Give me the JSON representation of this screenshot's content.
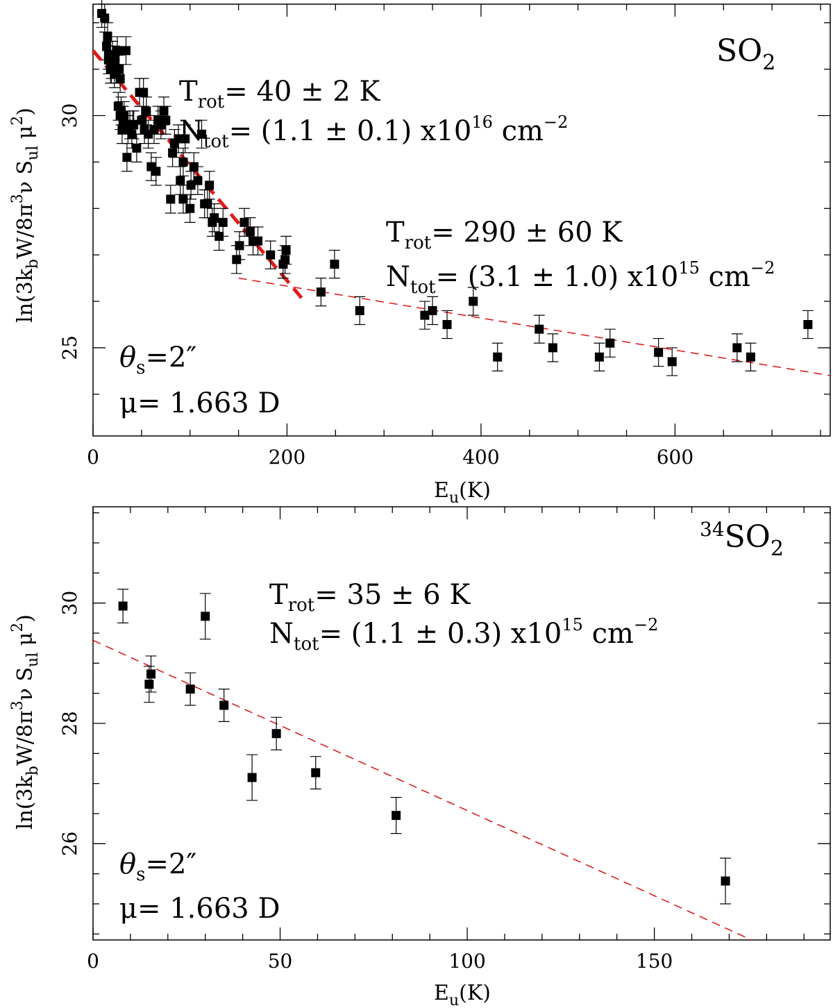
{
  "chart_data": [
    {
      "type": "scatter",
      "panel": "top",
      "species_label": "SO",
      "species_label_subscript": "2",
      "species_label_superscript": "",
      "xlabel": "E",
      "xlabel_sub": "u",
      "xlabel_unit": "(K)",
      "ylabel_prefix": "ln(3k",
      "ylabel_b": "b",
      "ylabel_mid": "W/8π",
      "ylabel_pow": "3",
      "ylabel_nu": "ν  S",
      "ylabel_ul": "ul",
      "ylabel_mu": " μ",
      "ylabel_pow2": "2",
      "ylabel_close": ")",
      "xlim": [
        0,
        760
      ],
      "ylim": [
        23.1,
        32.4
      ],
      "xticks": [
        0,
        200,
        400,
        600
      ],
      "xminor_step": 50,
      "yticks": [
        25,
        30
      ],
      "yminor_step": 1,
      "x": [
        9,
        12,
        14,
        15,
        16,
        16,
        18,
        18,
        19,
        19,
        20,
        22,
        22,
        24,
        25,
        26,
        27,
        28,
        28,
        29,
        30,
        31,
        32,
        34,
        35,
        36,
        38,
        40,
        41,
        42,
        45,
        48,
        50,
        52,
        53,
        55,
        57,
        60,
        63,
        65,
        67,
        70,
        72,
        73,
        75,
        80,
        82,
        84,
        88,
        90,
        93,
        93,
        95,
        100,
        101,
        104,
        108,
        112,
        115,
        118,
        120,
        123,
        125,
        130,
        134,
        148,
        151,
        156,
        162,
        165,
        170,
        183,
        196,
        198,
        199,
        235,
        249,
        275,
        342,
        350,
        365,
        392,
        417,
        460,
        474,
        522,
        533,
        583,
        597,
        664,
        678,
        737
      ],
      "y": [
        32.2,
        32.1,
        31.5,
        31.7,
        31.3,
        31.2,
        31.3,
        31.0,
        31.1,
        31.0,
        31.3,
        30.9,
        31.2,
        31.0,
        31.4,
        30.2,
        31.0,
        30.8,
        30.0,
        30.1,
        29.7,
        29.9,
        30.0,
        31.4,
        29.1,
        29.7,
        29.8,
        29.6,
        29.8,
        29.8,
        29.3,
        30.5,
        29.9,
        30.5,
        29.7,
        30.1,
        29.6,
        28.9,
        29.7,
        28.8,
        29.9,
        29.8,
        29.9,
        30.1,
        29.9,
        28.2,
        29.2,
        29.4,
        29.5,
        28.6,
        29.0,
        28.2,
        29.5,
        28.0,
        28.5,
        28.9,
        28.6,
        29.6,
        28.1,
        28.1,
        28.5,
        27.7,
        27.8,
        27.4,
        27.7,
        26.9,
        27.2,
        27.7,
        27.5,
        27.3,
        27.3,
        27.0,
        26.8,
        26.9,
        27.1,
        26.2,
        26.8,
        25.8,
        25.7,
        25.8,
        25.5,
        26.0,
        24.8,
        25.4,
        25.0,
        24.8,
        25.1,
        24.9,
        24.7,
        25.0,
        24.8,
        25.5
      ],
      "yerr": 0.3,
      "fits": [
        {
          "x": [
            0,
            218
          ],
          "y": [
            31.4,
            26.0
          ],
          "style": "thick"
        },
        {
          "x": [
            150,
            760
          ],
          "y": [
            26.5,
            24.4
          ],
          "style": "thin"
        }
      ],
      "annotations": {
        "fit1_trot_sym": "T",
        "fit1_trot_sub": "rot",
        "fit1_trot_val": "= 40 ± 2 K",
        "fit1_ntot_sym": "N",
        "fit1_ntot_sub": "tot",
        "fit1_ntot_val": "= (1.1 ± 0.1) x10",
        "fit1_ntot_exp": "16",
        "fit1_ntot_unit": " cm",
        "fit1_ntot_unit_exp": "−2",
        "fit2_trot_sym": "T",
        "fit2_trot_sub": "rot",
        "fit2_trot_val": "= 290 ± 60 K",
        "fit2_ntot_sym": "N",
        "fit2_ntot_sub": "tot",
        "fit2_ntot_val": "= (3.1 ± 1.0) x10",
        "fit2_ntot_exp": "15",
        "fit2_ntot_unit": " cm",
        "fit2_ntot_unit_exp": "−2",
        "theta_sym": "θ",
        "theta_sub": "s",
        "theta_val": "=2″",
        "mu_text": "μ= 1.663 D"
      },
      "fit_color": "#dd1c1c"
    },
    {
      "type": "scatter",
      "panel": "bottom",
      "species_label": "SO",
      "species_label_subscript": "2",
      "species_label_superscript": "34",
      "xlabel": "E",
      "xlabel_sub": "u",
      "xlabel_unit": "(K)",
      "ylabel_prefix": "ln(3k",
      "ylabel_b": "b",
      "ylabel_mid": "W/8π",
      "ylabel_pow": "3",
      "ylabel_nu": "ν  S",
      "ylabel_ul": "ul",
      "ylabel_mu": " μ",
      "ylabel_pow2": "2",
      "ylabel_close": ")",
      "xlim": [
        0,
        197
      ],
      "ylim": [
        24.4,
        31.6
      ],
      "xticks": [
        0,
        50,
        100,
        150
      ],
      "xminor_step": 10,
      "yticks": [
        26,
        28,
        30
      ],
      "yminor_step": 0.5,
      "x": [
        8,
        15,
        15.5,
        26,
        30,
        35,
        42.5,
        49,
        59.5,
        81,
        169
      ],
      "y": [
        29.95,
        28.65,
        28.82,
        28.57,
        29.78,
        28.3,
        27.1,
        27.83,
        27.18,
        26.47,
        25.38
      ],
      "yerr": [
        0.28,
        0.3,
        0.3,
        0.27,
        0.38,
        0.27,
        0.38,
        0.27,
        0.27,
        0.3,
        0.38
      ],
      "fits": [
        {
          "x": [
            0,
            176
          ],
          "y": [
            29.38,
            24.4
          ],
          "style": "thin"
        }
      ],
      "annotations": {
        "fit1_trot_sym": "T",
        "fit1_trot_sub": "rot",
        "fit1_trot_val": "= 35 ± 6 K",
        "fit1_ntot_sym": "N",
        "fit1_ntot_sub": "tot",
        "fit1_ntot_val": "= (1.1 ± 0.3) x10",
        "fit1_ntot_exp": "15",
        "fit1_ntot_unit": " cm",
        "fit1_ntot_unit_exp": "−2",
        "theta_sym": "θ",
        "theta_sub": "s",
        "theta_val": "=2″",
        "mu_text": "μ= 1.663 D"
      },
      "fit_color": "#dd1c1c"
    }
  ]
}
